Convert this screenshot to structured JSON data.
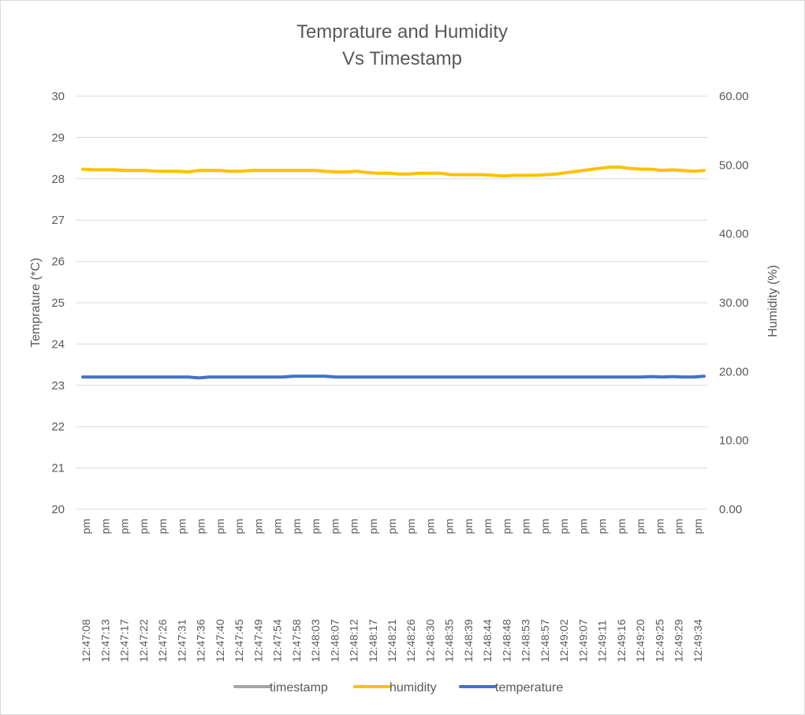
{
  "chart_data": {
    "type": "line",
    "title_line1": "Temprature and Humidity",
    "title_line2": "Vs Timestamp",
    "ylabel_left": "Temprature (*C)",
    "ylabel_right": "Humidity (%)",
    "ylim_left": [
      20,
      30
    ],
    "ylim_right": [
      0,
      60
    ],
    "yticks_left": [
      "20",
      "21",
      "22",
      "23",
      "24",
      "25",
      "26",
      "27",
      "28",
      "29",
      "30"
    ],
    "yticks_right": [
      "0.00",
      "10.00",
      "20.00",
      "30.00",
      "40.00",
      "50.00",
      "60.00"
    ],
    "grid": true,
    "legend_position": "bottom",
    "x_labels": [
      "12:47:08 pm",
      "12:47:13 pm",
      "12:47:17 pm",
      "12:47:22 pm",
      "12:47:26 pm",
      "12:47:31 pm",
      "12:47:36 pm",
      "12:47:40 pm",
      "12:47:45 pm",
      "12:47:49 pm",
      "12:47:54 pm",
      "12:47:58 pm",
      "12:48:03 pm",
      "12:48:07 pm",
      "12:48:12 pm",
      "12:48:17 pm",
      "12:48:21 pm",
      "12:48:26 pm",
      "12:48:30 pm",
      "12:48:35 pm",
      "12:48:39 pm",
      "12:48:44 pm",
      "12:48:48 pm",
      "12:48:53 pm",
      "12:48:57 pm",
      "12:49:02 pm",
      "12:49:07 pm",
      "12:49:11 pm",
      "12:49:16 pm",
      "12:49:20 pm",
      "12:49:25 pm",
      "12:49:29 pm",
      "12:49:34 pm"
    ],
    "series": [
      {
        "name": "timestamp",
        "color": "#a5a5a5",
        "axis": "none",
        "values": []
      },
      {
        "name": "humidity",
        "color": "#ffc000",
        "axis": "right",
        "values": [
          49.4,
          49.3,
          49.3,
          49.3,
          49.2,
          49.2,
          49.2,
          49.1,
          49.1,
          49.1,
          49.0,
          49.2,
          49.2,
          49.2,
          49.1,
          49.1,
          49.2,
          49.2,
          49.2,
          49.2,
          49.2,
          49.2,
          49.2,
          49.1,
          49.0,
          49.0,
          49.1,
          48.9,
          48.8,
          48.8,
          48.7,
          48.7,
          48.8,
          48.8,
          48.8,
          48.6,
          48.6,
          48.6,
          48.6,
          48.5,
          48.4,
          48.5,
          48.5,
          48.5,
          48.6,
          48.7,
          48.9,
          49.1,
          49.3,
          49.5,
          49.7,
          49.7,
          49.5,
          49.4,
          49.4,
          49.2,
          49.3,
          49.2,
          49.1,
          49.2
        ]
      },
      {
        "name": "temperature",
        "color": "#4472c4",
        "axis": "left",
        "values": [
          23.2,
          23.2,
          23.2,
          23.2,
          23.2,
          23.2,
          23.2,
          23.2,
          23.2,
          23.2,
          23.2,
          23.18,
          23.2,
          23.2,
          23.2,
          23.2,
          23.2,
          23.2,
          23.2,
          23.2,
          23.22,
          23.22,
          23.22,
          23.22,
          23.2,
          23.2,
          23.2,
          23.2,
          23.2,
          23.2,
          23.2,
          23.2,
          23.2,
          23.2,
          23.2,
          23.2,
          23.2,
          23.2,
          23.2,
          23.2,
          23.2,
          23.2,
          23.2,
          23.2,
          23.2,
          23.2,
          23.2,
          23.2,
          23.2,
          23.2,
          23.2,
          23.2,
          23.2,
          23.2,
          23.21,
          23.2,
          23.21,
          23.2,
          23.2,
          23.22
        ]
      }
    ]
  }
}
